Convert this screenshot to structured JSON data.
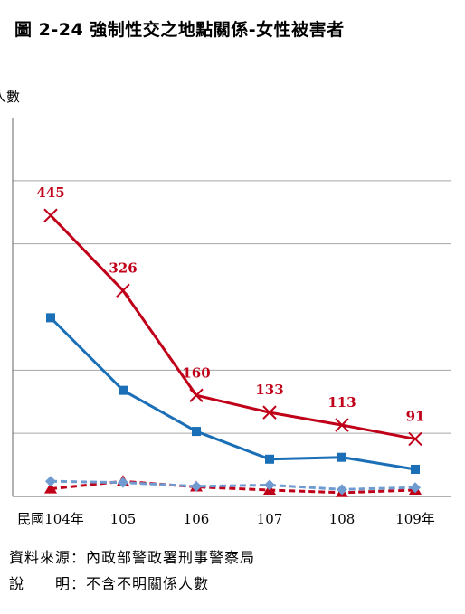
{
  "chart_data": {
    "type": "line",
    "title": "圖 2-24 強制性交之地點關係-女性被害者",
    "ylabel": "人數",
    "categories": [
      "民國104年",
      "105",
      "106",
      "107",
      "108",
      "109年"
    ],
    "ylim": [
      0,
      600
    ],
    "grid": true,
    "legend": "none",
    "series": [
      {
        "color": "#c00019",
        "marker": "x",
        "dashed": false,
        "values": [
          445,
          326,
          160,
          133,
          113,
          91
        ],
        "labels": [
          "445",
          "326",
          "160",
          "133",
          "113",
          "91"
        ]
      },
      {
        "color": "#1a6fb6",
        "marker": "square",
        "dashed": false,
        "values": [
          283,
          168,
          103,
          59,
          62,
          43
        ]
      },
      {
        "color": "#6f9bd1",
        "marker": "diamond",
        "dashed": true,
        "values": [
          24,
          22,
          16,
          18,
          11,
          14
        ]
      },
      {
        "color": "#c00019",
        "marker": "triangle",
        "dashed": true,
        "values": [
          12,
          24,
          15,
          10,
          6,
          10
        ]
      }
    ]
  },
  "notes": {
    "source_label": "資料來源：",
    "source_text": "內政部警政署刑事警察局",
    "remark_label": "說　　明：",
    "remark_text": "不含不明關係人數"
  }
}
